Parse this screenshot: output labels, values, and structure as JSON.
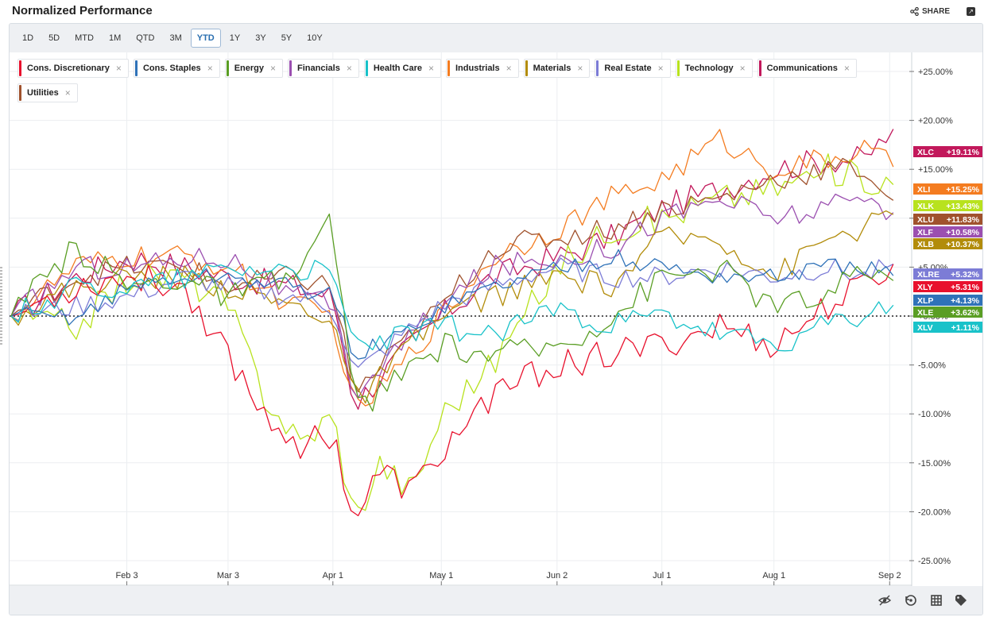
{
  "header": {
    "title": "Normalized Performance",
    "share_label": "SHARE"
  },
  "ranges": [
    "1D",
    "5D",
    "MTD",
    "1M",
    "QTD",
    "3M",
    "YTD",
    "1Y",
    "3Y",
    "5Y",
    "10Y"
  ],
  "active_range": "YTD",
  "legend": [
    {
      "name": "Cons. Discretionary",
      "color": "#e8112d"
    },
    {
      "name": "Cons. Staples",
      "color": "#2f72b8"
    },
    {
      "name": "Energy",
      "color": "#5a9e24"
    },
    {
      "name": "Financials",
      "color": "#9b4fb0"
    },
    {
      "name": "Health Care",
      "color": "#19c2c9"
    },
    {
      "name": "Industrials",
      "color": "#f47c20"
    },
    {
      "name": "Materials",
      "color": "#b28c0a"
    },
    {
      "name": "Real Estate",
      "color": "#7c7cd6"
    },
    {
      "name": "Technology",
      "color": "#b8e21e"
    },
    {
      "name": "Communications",
      "color": "#c2185b"
    },
    {
      "name": "Utilities",
      "color": "#a0522d"
    }
  ],
  "footer_icons": [
    "hide-icon",
    "reset-icon",
    "grid-icon",
    "tag-icon"
  ],
  "chart_data": {
    "type": "line",
    "title": "Normalized Performance",
    "y_unit": "%",
    "ylim": [
      -25,
      25
    ],
    "y_ticks": [
      "+25.00%",
      "+20.00%",
      "+15.00%",
      "+10.00%",
      "+5.00%",
      "+0.00%",
      "-5.00%",
      "-10.00%",
      "-15.00%",
      "-20.00%",
      "-25.00%"
    ],
    "y_tick_values": [
      25,
      20,
      15,
      10,
      5,
      0,
      -5,
      -10,
      -15,
      -20,
      -25
    ],
    "x_ticks": [
      "Feb 3",
      "Mar 3",
      "Apr 1",
      "May 1",
      "Jun 2",
      "Jul 1",
      "Aug 1",
      "Sep 2"
    ],
    "x_tick_days": [
      34,
      62,
      91,
      121,
      153,
      182,
      213,
      245
    ],
    "x_domain_days": [
      2,
      250
    ],
    "zero_line": true,
    "series": [
      {
        "ticker": "XLC",
        "name": "Communications",
        "color": "#c2185b",
        "final": 19.11,
        "label": "+19.11%",
        "anchors": [
          [
            2,
            0
          ],
          [
            20,
            4
          ],
          [
            35,
            6
          ],
          [
            50,
            5
          ],
          [
            62,
            4
          ],
          [
            80,
            3
          ],
          [
            91,
            2
          ],
          [
            97,
            -9
          ],
          [
            110,
            -4
          ],
          [
            121,
            0
          ],
          [
            135,
            4
          ],
          [
            153,
            6
          ],
          [
            168,
            8
          ],
          [
            182,
            11
          ],
          [
            198,
            13
          ],
          [
            213,
            15
          ],
          [
            228,
            16
          ],
          [
            238,
            16
          ],
          [
            246,
            19.11
          ]
        ],
        "vol": 0.9
      },
      {
        "ticker": "XLI",
        "name": "Industrials",
        "color": "#f47c20",
        "final": 15.25,
        "label": "+15.25%",
        "anchors": [
          [
            2,
            0
          ],
          [
            20,
            5
          ],
          [
            35,
            6
          ],
          [
            50,
            6
          ],
          [
            62,
            5
          ],
          [
            80,
            1
          ],
          [
            91,
            0
          ],
          [
            97,
            -10
          ],
          [
            110,
            -5
          ],
          [
            121,
            0
          ],
          [
            135,
            6
          ],
          [
            153,
            9
          ],
          [
            168,
            12
          ],
          [
            182,
            14
          ],
          [
            198,
            18
          ],
          [
            213,
            15
          ],
          [
            228,
            16
          ],
          [
            238,
            17
          ],
          [
            246,
            15.25
          ]
        ],
        "vol": 0.8
      },
      {
        "ticker": "XLK",
        "name": "Technology",
        "color": "#b8e21e",
        "final": 13.43,
        "label": "+13.43%",
        "anchors": [
          [
            2,
            0
          ],
          [
            20,
            -1
          ],
          [
            35,
            4
          ],
          [
            50,
            4
          ],
          [
            62,
            1
          ],
          [
            72,
            -8
          ],
          [
            82,
            -13
          ],
          [
            91,
            -10
          ],
          [
            97,
            -21
          ],
          [
            104,
            -15
          ],
          [
            113,
            -18
          ],
          [
            121,
            -10
          ],
          [
            135,
            -5
          ],
          [
            153,
            5
          ],
          [
            168,
            9
          ],
          [
            182,
            10
          ],
          [
            198,
            12
          ],
          [
            213,
            13
          ],
          [
            228,
            15
          ],
          [
            246,
            13.43
          ]
        ],
        "vol": 1.0
      },
      {
        "ticker": "XLU",
        "name": "Utilities",
        "color": "#a0522d",
        "final": 11.83,
        "label": "+11.83%",
        "anchors": [
          [
            2,
            0
          ],
          [
            20,
            4
          ],
          [
            35,
            5
          ],
          [
            50,
            5
          ],
          [
            62,
            3
          ],
          [
            80,
            4
          ],
          [
            91,
            3
          ],
          [
            97,
            -8
          ],
          [
            110,
            -3
          ],
          [
            121,
            1
          ],
          [
            135,
            7
          ],
          [
            153,
            8
          ],
          [
            168,
            9
          ],
          [
            182,
            11
          ],
          [
            198,
            12
          ],
          [
            213,
            14
          ],
          [
            228,
            15
          ],
          [
            238,
            15
          ],
          [
            246,
            11.83
          ]
        ],
        "vol": 0.8
      },
      {
        "ticker": "XLF",
        "name": "Financials",
        "color": "#9b4fb0",
        "final": 10.58,
        "label": "+10.58%",
        "anchors": [
          [
            2,
            0
          ],
          [
            20,
            5
          ],
          [
            35,
            5
          ],
          [
            50,
            6
          ],
          [
            62,
            6
          ],
          [
            80,
            2
          ],
          [
            91,
            1
          ],
          [
            97,
            -8
          ],
          [
            110,
            -3
          ],
          [
            121,
            1
          ],
          [
            135,
            5
          ],
          [
            153,
            6
          ],
          [
            168,
            7
          ],
          [
            182,
            10
          ],
          [
            198,
            12
          ],
          [
            213,
            10
          ],
          [
            228,
            11
          ],
          [
            238,
            12
          ],
          [
            246,
            10.58
          ]
        ],
        "vol": 0.8
      },
      {
        "ticker": "XLB",
        "name": "Materials",
        "color": "#b28c0a",
        "final": 10.37,
        "label": "+10.37%",
        "anchors": [
          [
            2,
            0
          ],
          [
            20,
            3
          ],
          [
            35,
            4
          ],
          [
            50,
            4
          ],
          [
            62,
            3
          ],
          [
            80,
            1
          ],
          [
            91,
            0
          ],
          [
            97,
            -9
          ],
          [
            110,
            -4
          ],
          [
            121,
            0
          ],
          [
            135,
            2
          ],
          [
            153,
            4
          ],
          [
            168,
            3
          ],
          [
            182,
            8
          ],
          [
            198,
            8
          ],
          [
            213,
            4
          ],
          [
            228,
            8
          ],
          [
            238,
            9
          ],
          [
            246,
            10.37
          ]
        ],
        "vol": 0.8
      },
      {
        "ticker": "XLRE",
        "name": "Real Estate",
        "color": "#7c7cd6",
        "final": 5.32,
        "label": "+5.32%",
        "anchors": [
          [
            2,
            0
          ],
          [
            20,
            1
          ],
          [
            35,
            2
          ],
          [
            50,
            4
          ],
          [
            62,
            3
          ],
          [
            80,
            2
          ],
          [
            91,
            1
          ],
          [
            97,
            -6
          ],
          [
            110,
            -2
          ],
          [
            121,
            1
          ],
          [
            135,
            3
          ],
          [
            153,
            5
          ],
          [
            168,
            4
          ],
          [
            182,
            4
          ],
          [
            198,
            5
          ],
          [
            213,
            4
          ],
          [
            228,
            5
          ],
          [
            238,
            4
          ],
          [
            246,
            5.32
          ]
        ],
        "vol": 0.7
      },
      {
        "ticker": "XLY",
        "name": "Cons. Discretionary",
        "color": "#e8112d",
        "final": 5.31,
        "label": "+5.31%",
        "anchors": [
          [
            2,
            0
          ],
          [
            20,
            3
          ],
          [
            35,
            4
          ],
          [
            50,
            3
          ],
          [
            62,
            -4
          ],
          [
            72,
            -10
          ],
          [
            82,
            -13
          ],
          [
            91,
            -12
          ],
          [
            97,
            -21
          ],
          [
            104,
            -16
          ],
          [
            113,
            -18
          ],
          [
            121,
            -14
          ],
          [
            135,
            -8
          ],
          [
            153,
            -5
          ],
          [
            168,
            -4
          ],
          [
            182,
            -3
          ],
          [
            198,
            -1
          ],
          [
            213,
            -3
          ],
          [
            228,
            1
          ],
          [
            238,
            3
          ],
          [
            246,
            5.31
          ]
        ],
        "vol": 1.0
      },
      {
        "ticker": "XLP",
        "name": "Cons. Staples",
        "color": "#2f72b8",
        "final": 4.13,
        "label": "+4.13%",
        "anchors": [
          [
            2,
            0
          ],
          [
            20,
            0
          ],
          [
            35,
            3
          ],
          [
            50,
            4
          ],
          [
            62,
            4
          ],
          [
            80,
            3
          ],
          [
            91,
            2
          ],
          [
            97,
            -4
          ],
          [
            110,
            -2
          ],
          [
            121,
            1
          ],
          [
            135,
            3
          ],
          [
            153,
            5
          ],
          [
            168,
            6
          ],
          [
            182,
            5
          ],
          [
            198,
            4
          ],
          [
            213,
            4
          ],
          [
            228,
            5
          ],
          [
            238,
            5
          ],
          [
            246,
            4.13
          ]
        ],
        "vol": 0.6
      },
      {
        "ticker": "XLE",
        "name": "Energy",
        "color": "#5a9e24",
        "final": 3.62,
        "label": "+3.62%",
        "anchors": [
          [
            2,
            0
          ],
          [
            20,
            7
          ],
          [
            35,
            3
          ],
          [
            50,
            4
          ],
          [
            62,
            2
          ],
          [
            80,
            4
          ],
          [
            91,
            10
          ],
          [
            97,
            -10
          ],
          [
            110,
            -6
          ],
          [
            121,
            -3
          ],
          [
            135,
            -4
          ],
          [
            153,
            -3
          ],
          [
            168,
            0
          ],
          [
            182,
            4
          ],
          [
            198,
            5
          ],
          [
            213,
            1
          ],
          [
            228,
            2
          ],
          [
            238,
            5
          ],
          [
            246,
            3.62
          ]
        ],
        "vol": 0.9
      },
      {
        "ticker": "XLV",
        "name": "Health Care",
        "color": "#19c2c9",
        "final": 1.11,
        "label": "+1.11%",
        "anchors": [
          [
            2,
            0
          ],
          [
            20,
            3
          ],
          [
            35,
            3
          ],
          [
            50,
            4
          ],
          [
            62,
            5
          ],
          [
            80,
            5
          ],
          [
            91,
            4
          ],
          [
            97,
            -3
          ],
          [
            110,
            -2
          ],
          [
            121,
            -1
          ],
          [
            135,
            -2
          ],
          [
            153,
            1
          ],
          [
            168,
            -1
          ],
          [
            182,
            0
          ],
          [
            198,
            -2
          ],
          [
            213,
            -3
          ],
          [
            228,
            -1
          ],
          [
            238,
            0
          ],
          [
            246,
            1.11
          ]
        ],
        "vol": 0.8
      }
    ]
  }
}
